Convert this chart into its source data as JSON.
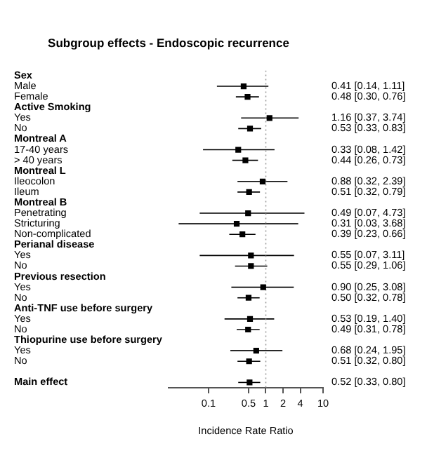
{
  "chart_data": {
    "type": "scatter",
    "orientation": "horizontal",
    "title": "Subgroup effects - Endoscopic recurrence",
    "xlabel": "Incidence Rate Ratio",
    "categories": [
      "Sex",
      "Male",
      "Female",
      "Active Smoking",
      "Yes",
      "No",
      "Montreal A",
      "17-40 years",
      "> 40 years",
      "Montreal L",
      "Ileocolon",
      "Ileum",
      "Montreal B",
      "Penetrating",
      "Stricturing",
      "Non-complicated",
      "Perianal disease",
      "Yes",
      "No",
      "Previous resection",
      "Yes",
      "No",
      "Anti-TNF use before surgery",
      "Yes",
      "No",
      "Thiopurine use before surgery",
      "Yes",
      "No",
      null,
      "Main effect"
    ],
    "series": [
      {
        "color": "#000000",
        "values": [
          null,
          0.41,
          0.48,
          null,
          1.16,
          0.53,
          null,
          0.33,
          0.44,
          null,
          0.88,
          0.51,
          null,
          0.49,
          0.31,
          0.39,
          null,
          0.55,
          0.55,
          null,
          0.9,
          0.5,
          null,
          0.53,
          0.49,
          null,
          0.68,
          0.51,
          null,
          0.52
        ],
        "errors": [
          null,
          [
            0.14,
            1.11
          ],
          [
            0.3,
            0.76
          ],
          null,
          [
            0.37,
            3.74
          ],
          [
            0.33,
            0.83
          ],
          null,
          [
            0.08,
            1.42
          ],
          [
            0.26,
            0.73
          ],
          null,
          [
            0.32,
            2.39
          ],
          [
            0.32,
            0.79
          ],
          null,
          [
            0.07,
            4.73
          ],
          [
            0.03,
            3.68
          ],
          [
            0.23,
            0.66
          ],
          null,
          [
            0.07,
            3.11
          ],
          [
            0.29,
            1.06
          ],
          null,
          [
            0.25,
            3.08
          ],
          [
            0.32,
            0.78
          ],
          null,
          [
            0.19,
            1.4
          ],
          [
            0.31,
            0.78
          ],
          null,
          [
            0.24,
            1.95
          ],
          [
            0.32,
            0.8
          ],
          null,
          [
            0.33,
            0.8
          ]
        ],
        "value_labels": [
          null,
          "0.41 [0.14, 1.11]",
          "0.48 [0.30, 0.76]",
          null,
          "1.16 [0.37, 3.74]",
          "0.53 [0.33, 0.83]",
          null,
          "0.33 [0.08, 1.42]",
          "0.44 [0.26, 0.73]",
          null,
          "0.88 [0.32, 2.39]",
          "0.51 [0.32, 0.79]",
          null,
          "0.49 [0.07, 4.73]",
          "0.31 [0.03, 3.68]",
          "0.39 [0.23, 0.66]",
          null,
          "0.55 [0.07, 3.11]",
          "0.55 [0.29, 1.06]",
          null,
          "0.90 [0.25, 3.08]",
          "0.50 [0.32, 0.78]",
          null,
          "0.53 [0.19, 1.40]",
          "0.49 [0.31, 0.78]",
          null,
          "0.68 [0.24, 1.95]",
          "0.51 [0.32, 0.80]",
          null,
          "0.52 [0.33, 0.80]"
        ]
      }
    ],
    "log": "x",
    "xlim": [
      0.02,
      10
    ],
    "xticks": [
      0.1,
      0.5,
      1,
      2,
      4,
      10
    ],
    "ref_lines": [
      {
        "axis": "x",
        "value": 1,
        "color": "#999999",
        "line_style": "dotted"
      }
    ],
    "marker": "square",
    "grid": false,
    "legend": false
  }
}
